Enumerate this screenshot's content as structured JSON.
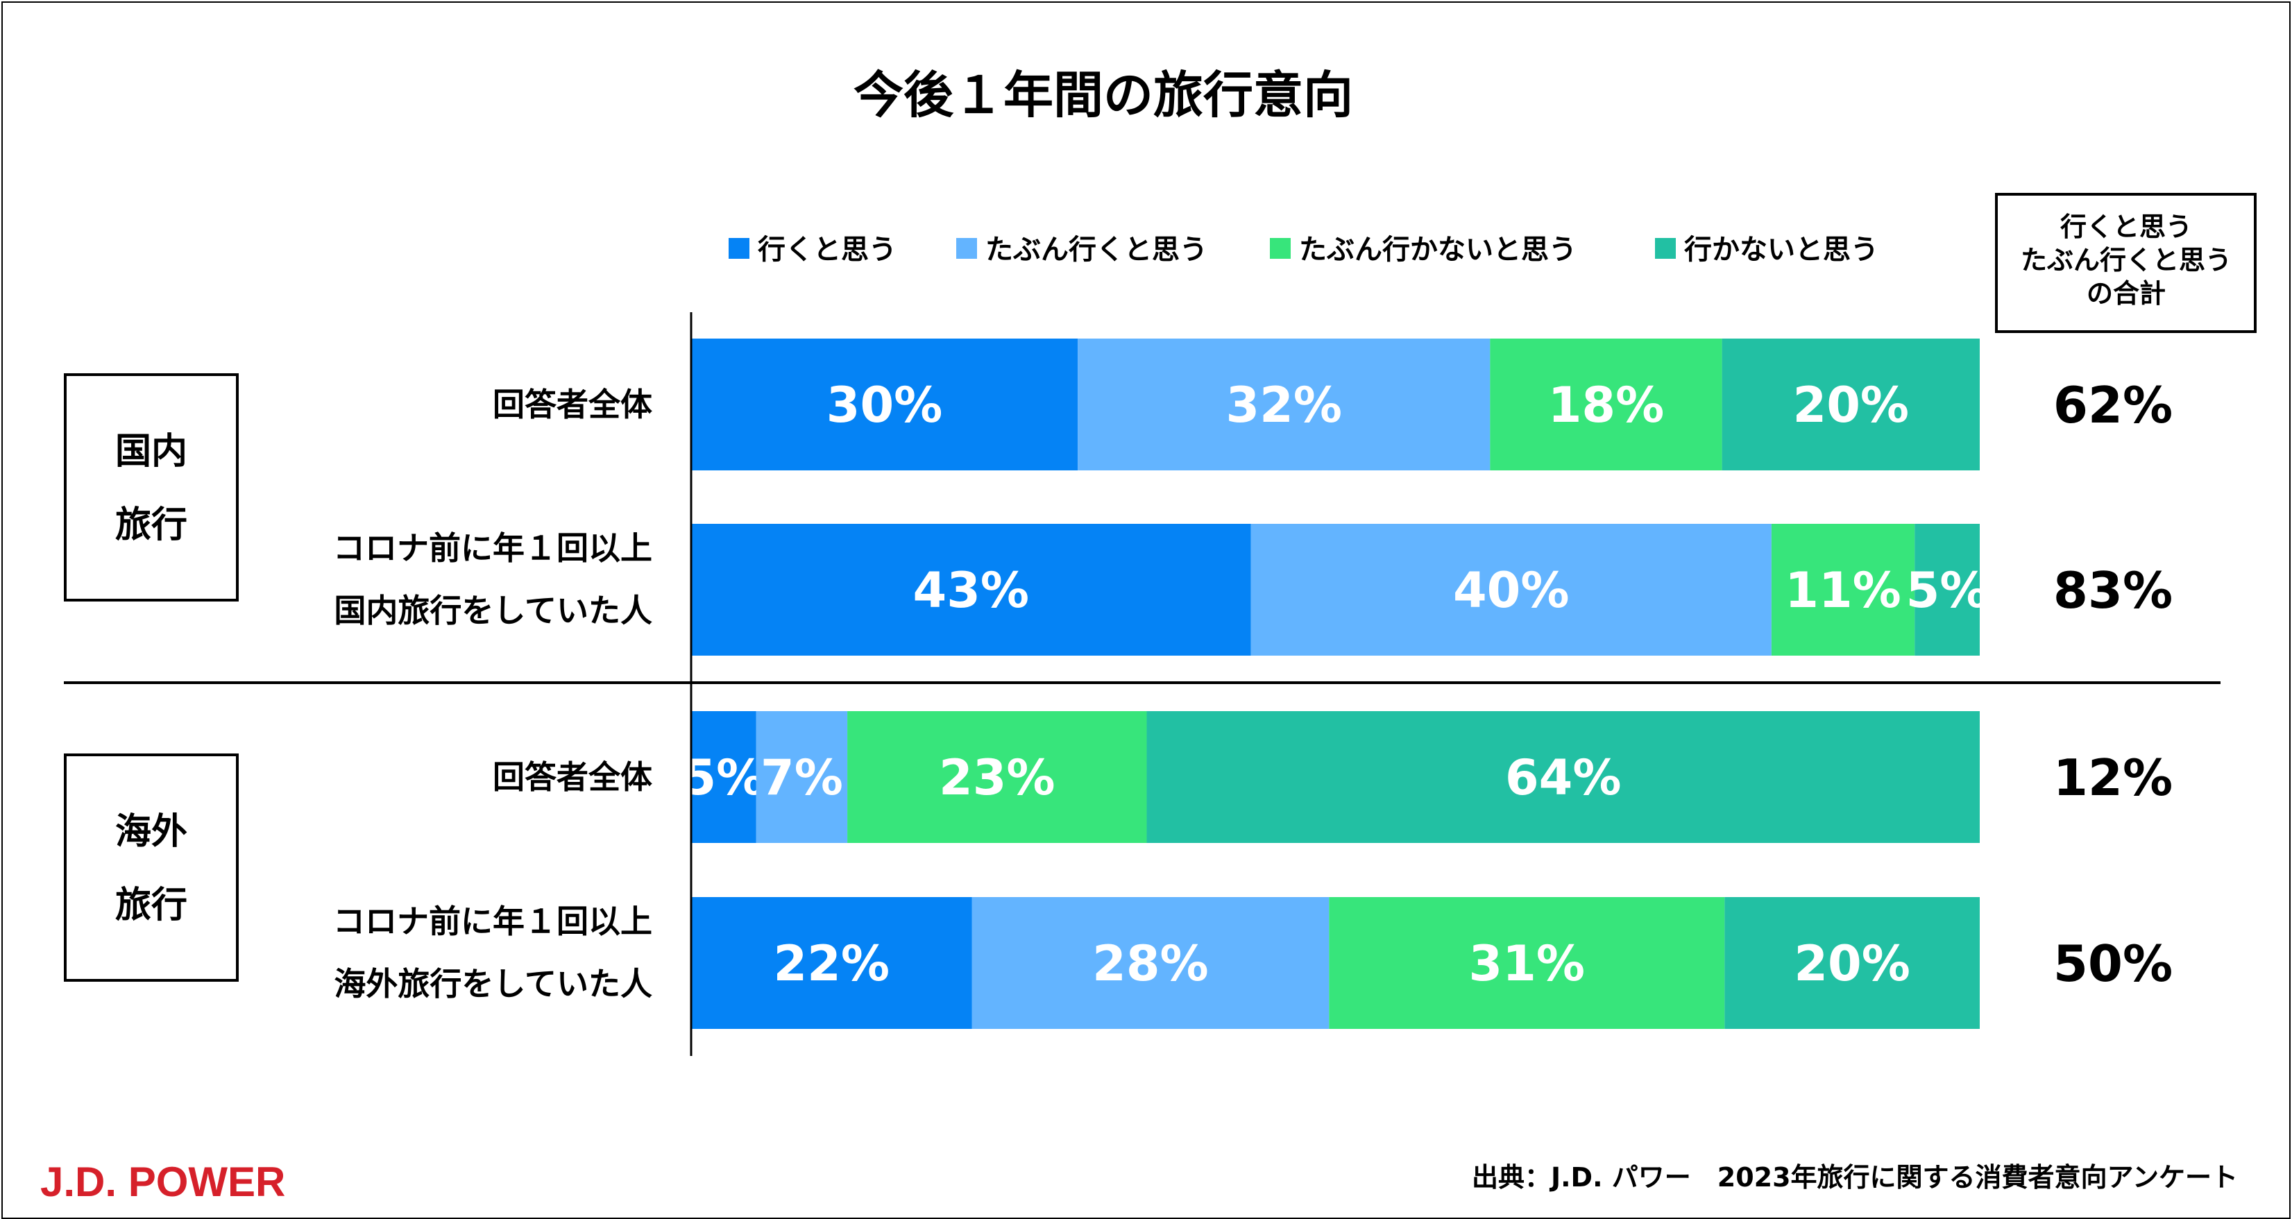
{
  "chart_data": {
    "type": "bar",
    "orientation": "horizontal-stacked-100",
    "title": "今後１年間の旅行意向",
    "legend": [
      {
        "name": "行くと思う",
        "color": "#0583F5"
      },
      {
        "name": "たぶん行くと思う",
        "color": "#63B4FF"
      },
      {
        "name": "たぶん行かないと思う",
        "color": "#37E57B"
      },
      {
        "name": "行かないと思う",
        "color": "#22C0A3"
      }
    ],
    "total_header": [
      "行くと思う",
      "たぶん行くと思う",
      "の合計"
    ],
    "groups": [
      {
        "label_lines": [
          "国内",
          "旅行"
        ],
        "rows": [
          {
            "label_lines": [
              "回答者全体"
            ],
            "values": [
              30,
              32,
              18,
              20
            ],
            "labels": [
              "30%",
              "32%",
              "18%",
              "20%"
            ],
            "total": "62%"
          },
          {
            "label_lines": [
              "コロナ前に年１回以上",
              "国内旅行をしていた人"
            ],
            "values": [
              43,
              40,
              11,
              5
            ],
            "labels": [
              "43%",
              "40%",
              "11%",
              "5%"
            ],
            "total": "83%"
          }
        ]
      },
      {
        "label_lines": [
          "海外",
          "旅行"
        ],
        "rows": [
          {
            "label_lines": [
              "回答者全体"
            ],
            "values": [
              5,
              7,
              23,
              64
            ],
            "labels": [
              "5%",
              "7%",
              "23%",
              "64%"
            ],
            "total": "12%"
          },
          {
            "label_lines": [
              "コロナ前に年１回以上",
              "海外旅行をしていた人"
            ],
            "values": [
              22,
              28,
              31,
              20
            ],
            "labels": [
              "22%",
              "28%",
              "31%",
              "20%"
            ],
            "total": "50%"
          }
        ]
      }
    ]
  },
  "footer": {
    "logo": "J.D. POWER",
    "source": "出典：J.D. パワー　2023年旅行に関する消費者意向アンケート"
  }
}
